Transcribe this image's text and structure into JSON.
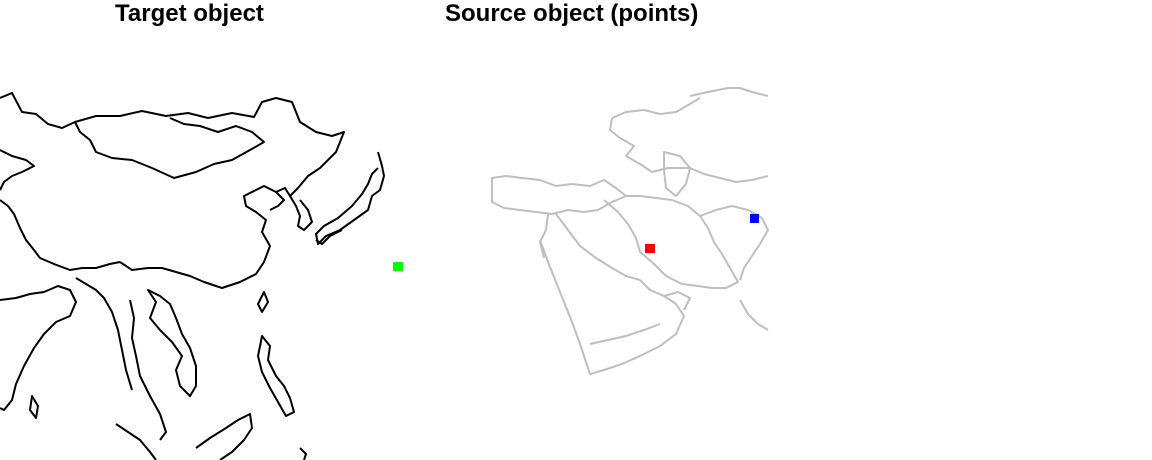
{
  "panels": [
    {
      "title": "Target object"
    },
    {
      "title": "Source object (points)"
    }
  ],
  "colors": {
    "target_outline": "#000000",
    "source_outline": "#bebebe",
    "point_green": "#00ff00",
    "point_red": "#ff0000",
    "point_blue": "#0000ff"
  },
  "points": [
    {
      "color": "green",
      "panel": "target"
    },
    {
      "color": "red",
      "panel": "source"
    },
    {
      "color": "blue",
      "panel": "source"
    }
  ]
}
